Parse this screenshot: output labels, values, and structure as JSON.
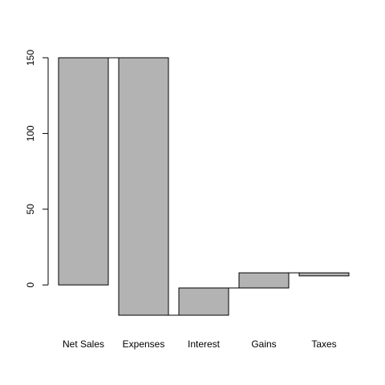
{
  "chart_data": {
    "type": "waterfall",
    "categories": [
      "Net Sales",
      "Expenses",
      "Interest",
      "Gains",
      "Taxes"
    ],
    "values": [
      150,
      -170,
      18,
      10,
      -2
    ],
    "color": "#b3b3b3",
    "ylim": [
      -20,
      150
    ],
    "yticks": [
      0,
      50,
      100,
      150
    ],
    "grid": false
  }
}
